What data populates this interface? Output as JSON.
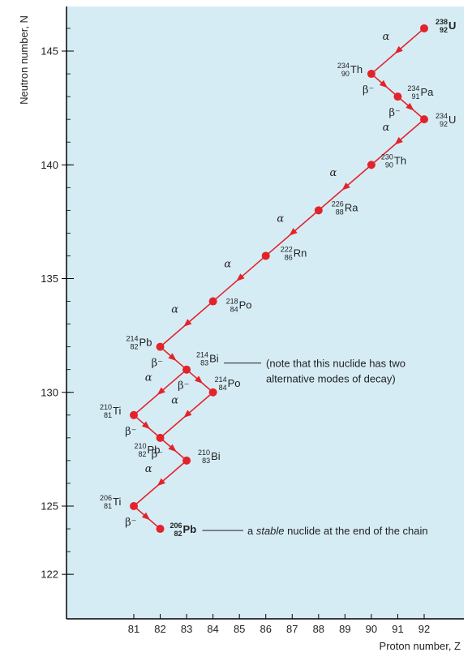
{
  "chart_data": {
    "type": "scatter",
    "title": "",
    "xlabel": "Proton number, Z",
    "ylabel": "Neutron number, N",
    "xlim": [
      79,
      93.5
    ],
    "ylim": [
      121.3,
      147.3
    ],
    "x_ticks": [
      "81",
      "82",
      "83",
      "84",
      "85",
      "86",
      "87",
      "88",
      "89",
      "90",
      "91",
      "92"
    ],
    "y_ticks": [
      "122",
      "125",
      "130",
      "135",
      "140",
      "145"
    ],
    "colors": {
      "plot_bg": "#d6ecf5",
      "accent": "#e2232a",
      "axis": "#000000"
    },
    "nuclides": [
      {
        "id": "U238",
        "Z": 92,
        "N": 146,
        "mass": "238",
        "number": "92",
        "symbol": "U",
        "bold": true
      },
      {
        "id": "Th234",
        "Z": 90,
        "N": 144,
        "mass": "234",
        "number": "90",
        "symbol": "Th"
      },
      {
        "id": "Pa234",
        "Z": 91,
        "N": 143,
        "mass": "234",
        "number": "91",
        "symbol": "Pa"
      },
      {
        "id": "U234",
        "Z": 92,
        "N": 142,
        "mass": "234",
        "number": "92",
        "symbol": "U"
      },
      {
        "id": "Th230",
        "Z": 90,
        "N": 140,
        "mass": "230",
        "number": "90",
        "symbol": "Th"
      },
      {
        "id": "Ra226",
        "Z": 88,
        "N": 138,
        "mass": "226",
        "number": "88",
        "symbol": "Ra"
      },
      {
        "id": "Rn222",
        "Z": 86,
        "N": 136,
        "mass": "222",
        "number": "86",
        "symbol": "Rn"
      },
      {
        "id": "Po218",
        "Z": 84,
        "N": 134,
        "mass": "218",
        "number": "84",
        "symbol": "Po"
      },
      {
        "id": "Pb214",
        "Z": 82,
        "N": 132,
        "mass": "214",
        "number": "82",
        "symbol": "Pb"
      },
      {
        "id": "Bi214",
        "Z": 83,
        "N": 131,
        "mass": "214",
        "number": "83",
        "symbol": "Bi"
      },
      {
        "id": "Po214",
        "Z": 84,
        "N": 130,
        "mass": "214",
        "number": "84",
        "symbol": "Po"
      },
      {
        "id": "Ti210",
        "Z": 81,
        "N": 129,
        "mass": "210",
        "number": "81",
        "symbol": "Ti"
      },
      {
        "id": "Pb210",
        "Z": 82,
        "N": 128,
        "mass": "210",
        "number": "82",
        "symbol": "Pb"
      },
      {
        "id": "Bi210",
        "Z": 83,
        "N": 127,
        "mass": "210",
        "number": "83",
        "symbol": "Bi"
      },
      {
        "id": "Ti206",
        "Z": 81,
        "N": 125,
        "mass": "206",
        "number": "81",
        "symbol": "Ti"
      },
      {
        "id": "Pb206",
        "Z": 82,
        "N": 124,
        "mass": "206",
        "number": "82",
        "symbol": "Pb",
        "bold": true
      }
    ],
    "decays": [
      {
        "from": "U238",
        "to": "Th234",
        "mode": "α"
      },
      {
        "from": "Th234",
        "to": "Pa234",
        "mode": "β⁻"
      },
      {
        "from": "Pa234",
        "to": "U234",
        "mode": "β⁻"
      },
      {
        "from": "U234",
        "to": "Th230",
        "mode": "α"
      },
      {
        "from": "Th230",
        "to": "Ra226",
        "mode": "α"
      },
      {
        "from": "Ra226",
        "to": "Rn222",
        "mode": "α"
      },
      {
        "from": "Rn222",
        "to": "Po218",
        "mode": "α"
      },
      {
        "from": "Po218",
        "to": "Pb214",
        "mode": "α"
      },
      {
        "from": "Pb214",
        "to": "Bi214",
        "mode": "β⁻"
      },
      {
        "from": "Bi214",
        "to": "Ti210",
        "mode": "α"
      },
      {
        "from": "Bi214",
        "to": "Po214",
        "mode": "β⁻"
      },
      {
        "from": "Ti210",
        "to": "Pb210",
        "mode": "β⁻"
      },
      {
        "from": "Po214",
        "to": "Pb210",
        "mode": "α"
      },
      {
        "from": "Pb210",
        "to": "Bi210",
        "mode": "β⁻"
      },
      {
        "from": "Bi210",
        "to": "Ti206",
        "mode": "α"
      },
      {
        "from": "Ti206",
        "to": "Pb206",
        "mode": "β⁻"
      }
    ],
    "annotations": [
      {
        "target": "Bi214",
        "text_lines": [
          "(note that this nuclide has two",
          "alternative modes of decay)"
        ],
        "italic_word": ""
      },
      {
        "target": "Pb206",
        "text_prefix": "a ",
        "text_italic": "stable",
        "text_suffix": " nuclide at the end of the chain"
      }
    ]
  }
}
